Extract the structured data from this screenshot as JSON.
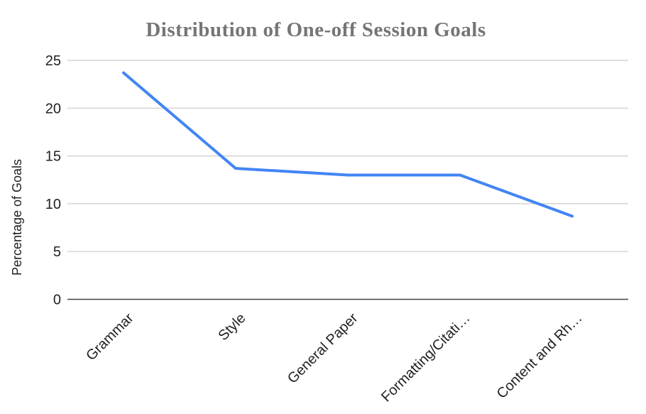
{
  "chart_data": {
    "type": "line",
    "title": "Distribution of One-off Session Goals",
    "categories": [
      "Grammar",
      "Style",
      "General Paper",
      "Formatting/Citati…",
      "Content and Rh…"
    ],
    "values": [
      23.7,
      13.7,
      13,
      13,
      8.7
    ],
    "xlabel": "",
    "ylabel": "Percentage of Goals",
    "ylim": [
      0,
      25
    ],
    "yticks": [
      0,
      5,
      10,
      15,
      20,
      25
    ],
    "grid": true,
    "legend": "none",
    "colors": {
      "line": "#4285f4",
      "gridline": "#cccccc",
      "axis_line": "#424242",
      "tick_text": "#222222",
      "title_text": "#757575"
    }
  }
}
